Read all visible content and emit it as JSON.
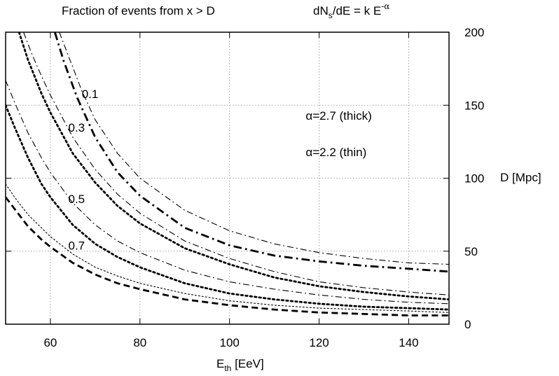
{
  "chart_data": {
    "type": "line",
    "title": "Fraction of events from x > D",
    "formula": {
      "base": "dN",
      "sub": "s",
      "middle": "/dE = k E",
      "sup": "-α"
    },
    "xlabel": {
      "main": "E",
      "sub": "th",
      "unit": " [EeV]"
    },
    "ylabel": "D [Mpc]",
    "xlim": [
      50,
      149
    ],
    "ylim": [
      0,
      200
    ],
    "xticks": [
      60,
      80,
      100,
      120,
      140
    ],
    "yticks": [
      0,
      50,
      100,
      150,
      200
    ],
    "grid": true,
    "annotations": [
      {
        "text": "0.1",
        "x": 67,
        "y": 155
      },
      {
        "text": "0.3",
        "x": 64,
        "y": 132
      },
      {
        "text": "0.5",
        "x": 64,
        "y": 83
      },
      {
        "text": "0.7",
        "x": 64,
        "y": 51
      },
      {
        "text": "α=2.7  (thick)",
        "x": 117,
        "y": 140
      },
      {
        "text": "α=2.2  (thin)",
        "x": 117,
        "y": 115
      }
    ],
    "series": [
      {
        "fraction": "0.1",
        "alpha": "2.7",
        "style": "dash-dot",
        "width": "thick",
        "x": [
          61,
          63,
          66,
          70,
          75,
          80,
          90,
          100,
          110,
          120,
          130,
          140,
          149
        ],
        "y": [
          200,
          180,
          155,
          128,
          104,
          88,
          66,
          54,
          47,
          43,
          40,
          38,
          36
        ]
      },
      {
        "fraction": "0.1",
        "alpha": "2.2",
        "style": "dash-dot",
        "width": "thin",
        "x": [
          62,
          64,
          67,
          70,
          75,
          80,
          90,
          100,
          110,
          120,
          130,
          140,
          149
        ],
        "y": [
          200,
          184,
          160,
          140,
          117,
          100,
          78,
          64,
          55,
          49,
          45,
          42,
          41
        ]
      },
      {
        "fraction": "0.3",
        "alpha": "2.7",
        "style": "dotted",
        "width": "thick",
        "x": [
          53,
          55,
          58,
          60,
          65,
          70,
          75,
          80,
          90,
          100,
          110,
          120,
          130,
          140,
          149
        ],
        "y": [
          200,
          181,
          158,
          145,
          117,
          97,
          81,
          69,
          52,
          41,
          32,
          26,
          22,
          19,
          17
        ]
      },
      {
        "fraction": "0.3",
        "alpha": "2.2",
        "style": "dash-dot",
        "width": "thin",
        "x": [
          54,
          56,
          58,
          60,
          65,
          70,
          75,
          80,
          90,
          100,
          110,
          120,
          130,
          140,
          149
        ],
        "y": [
          200,
          184,
          170,
          157,
          128,
          106,
          89,
          76,
          57,
          45,
          36,
          29,
          25,
          22,
          20
        ]
      },
      {
        "fraction": "0.5",
        "alpha": "2.7",
        "style": "dotted",
        "width": "thick",
        "x": [
          50,
          52,
          55,
          58,
          60,
          65,
          70,
          75,
          80,
          90,
          100,
          110,
          120,
          130,
          140,
          149
        ],
        "y": [
          150,
          135,
          114,
          96,
          87,
          68,
          55,
          46,
          39,
          28,
          21,
          17,
          14,
          12,
          11,
          10
        ]
      },
      {
        "fraction": "0.5",
        "alpha": "2.2",
        "style": "dash-dot",
        "width": "thin",
        "x": [
          50,
          52,
          55,
          58,
          60,
          65,
          70,
          75,
          80,
          90,
          100,
          110,
          120,
          130,
          140,
          149
        ],
        "y": [
          167,
          152,
          131,
          114,
          104,
          83,
          68,
          57,
          49,
          37,
          29,
          24,
          20,
          17,
          15,
          14
        ]
      },
      {
        "fraction": "0.7",
        "alpha": "2.7",
        "style": "dashed",
        "width": "thick",
        "x": [
          50,
          52,
          55,
          58,
          60,
          65,
          70,
          75,
          80,
          90,
          100,
          110,
          120,
          130,
          140,
          149
        ],
        "y": [
          87,
          79,
          67,
          58,
          53,
          42,
          34,
          28,
          24,
          17,
          13,
          10,
          8,
          7,
          6,
          6
        ]
      },
      {
        "fraction": "0.7",
        "alpha": "2.2",
        "style": "dotted",
        "width": "thin",
        "x": [
          50,
          52,
          55,
          58,
          60,
          65,
          70,
          75,
          80,
          90,
          100,
          110,
          120,
          130,
          140,
          149
        ],
        "y": [
          96,
          87,
          75,
          66,
          60,
          48,
          39,
          33,
          28,
          21,
          16,
          13,
          11,
          10,
          9,
          8
        ]
      }
    ]
  }
}
